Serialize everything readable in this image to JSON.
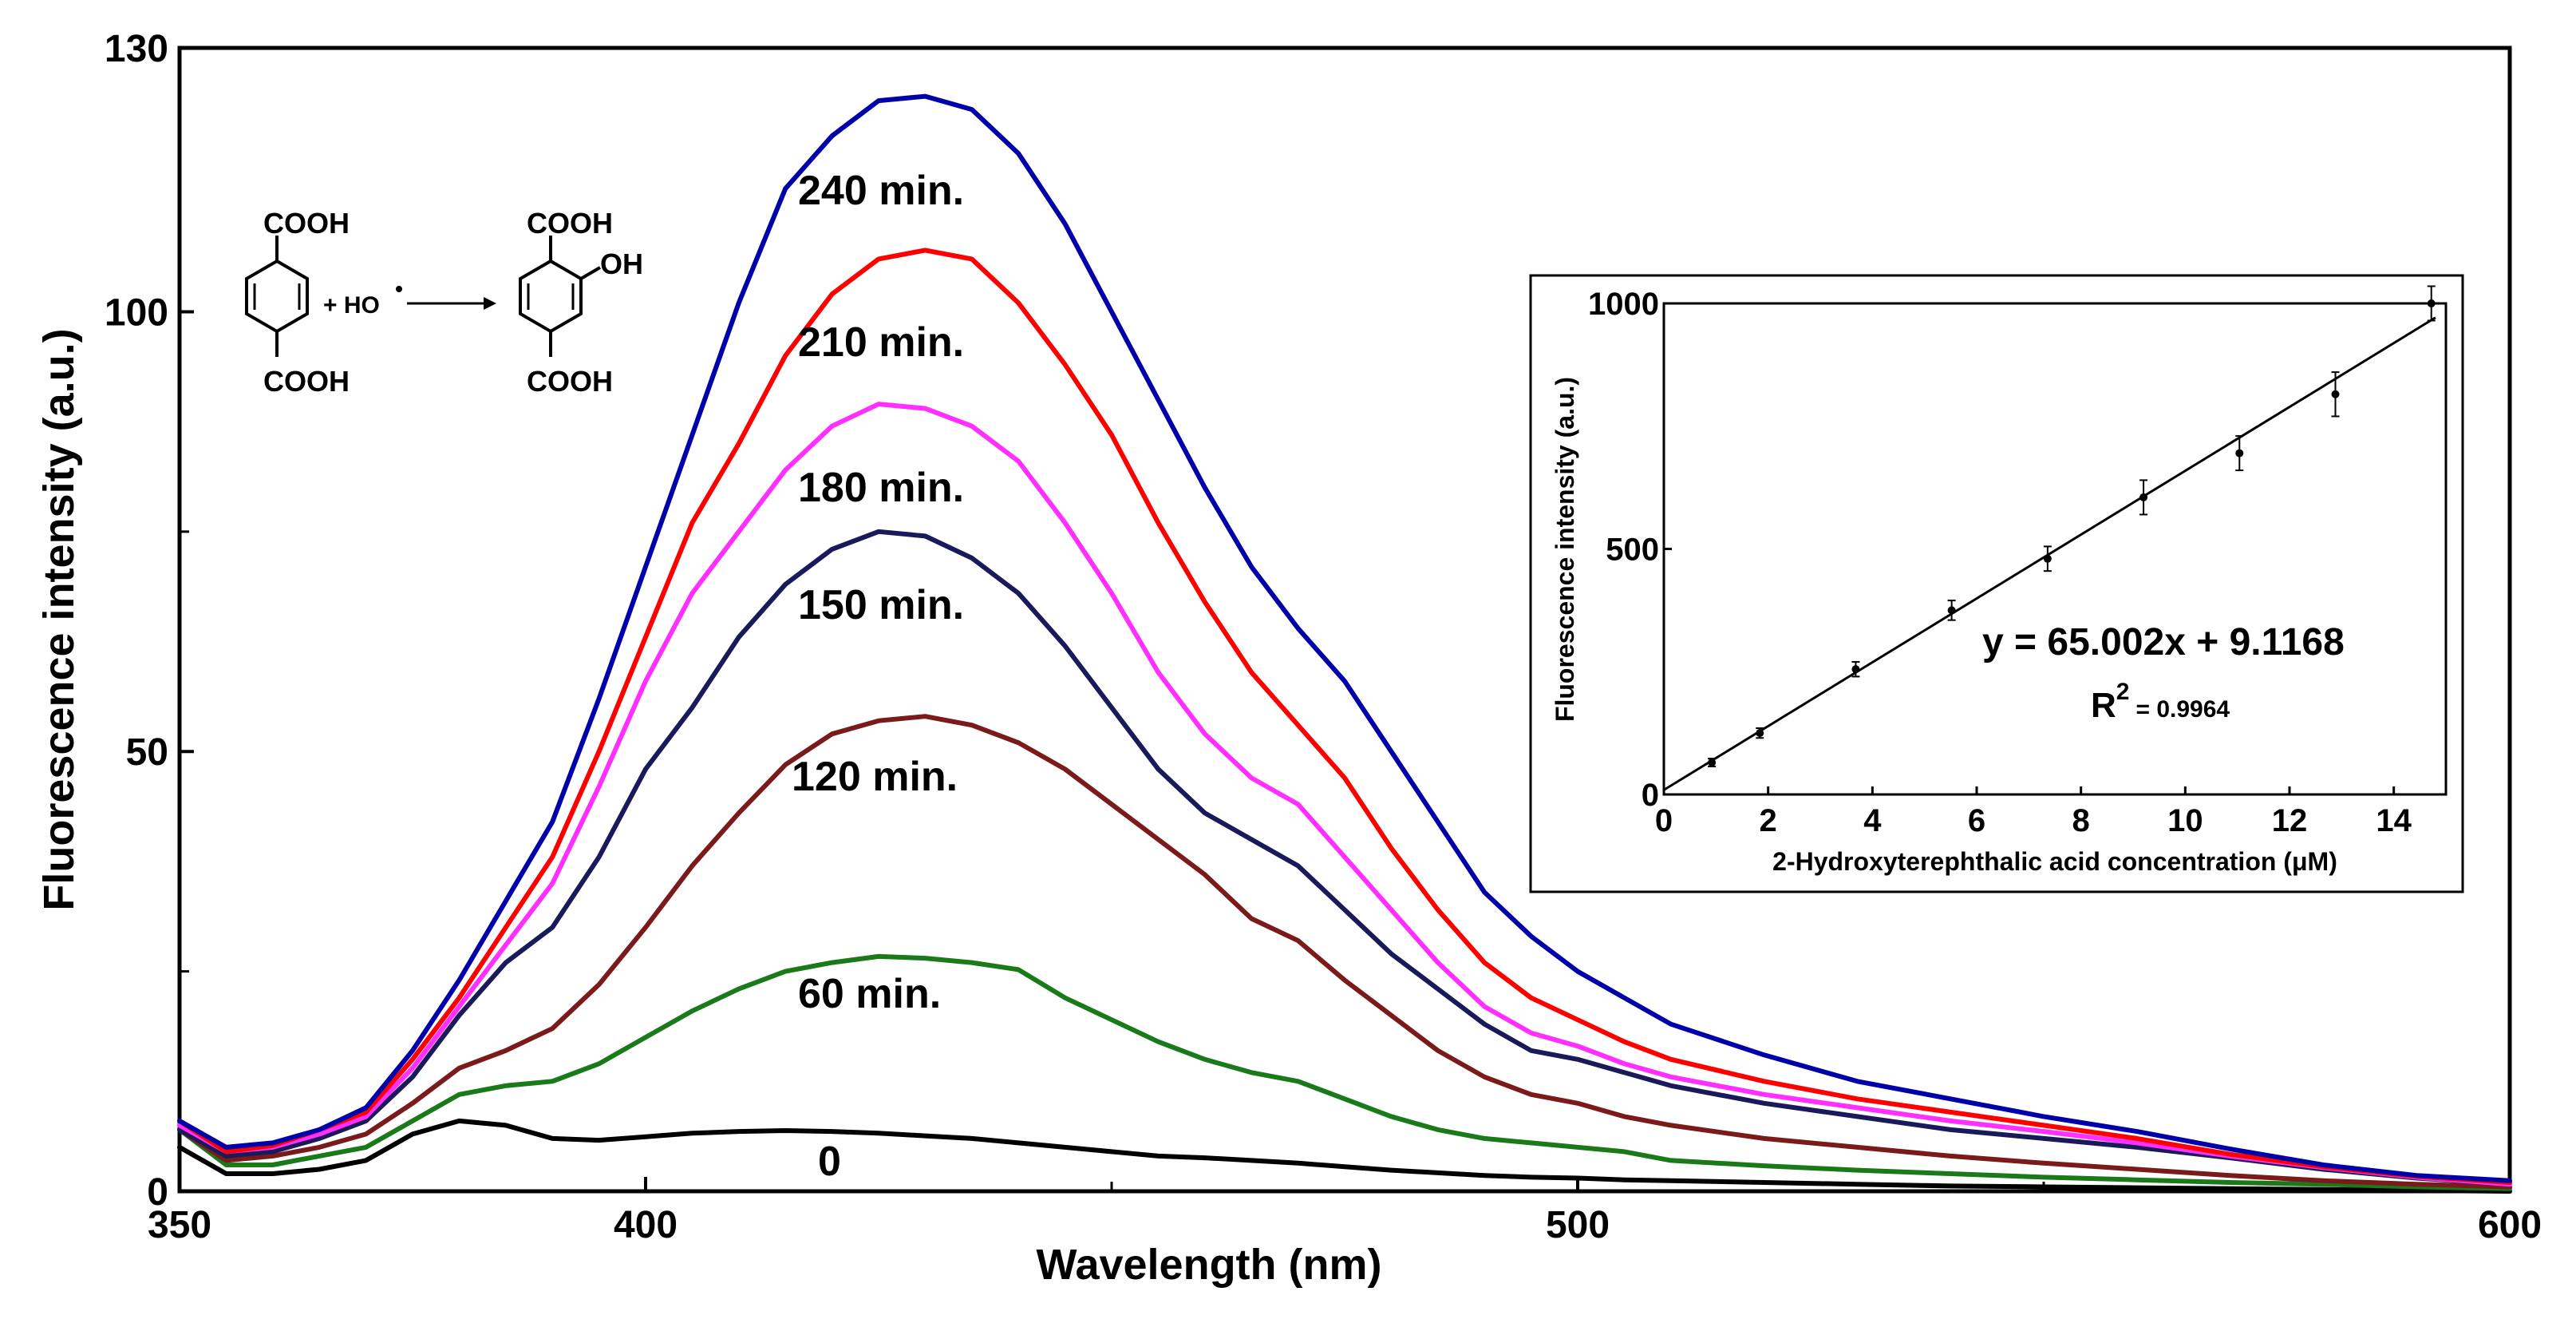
{
  "chart_data": [
    {
      "type": "line",
      "title": "",
      "xlabel": "Wavelength (nm)",
      "ylabel": "Fluorescence intensity (a.u.)",
      "xlim": [
        350,
        600
      ],
      "ylim": [
        0,
        130
      ],
      "x_ticks": [
        350,
        400,
        500,
        600
      ],
      "y_ticks": [
        0,
        50,
        100,
        130
      ],
      "x": [
        350,
        355,
        360,
        365,
        370,
        375,
        380,
        385,
        390,
        395,
        400,
        405,
        410,
        415,
        420,
        425,
        430,
        435,
        440,
        445,
        450,
        455,
        460,
        465,
        470,
        475,
        480,
        485,
        490,
        495,
        500,
        505,
        510,
        520,
        530,
        540,
        550,
        560,
        570,
        580,
        590,
        600
      ],
      "series": [
        {
          "name": "0",
          "label": "0",
          "color": "#000000",
          "values": [
            5,
            2,
            2,
            2.5,
            3.5,
            6.5,
            8,
            7.5,
            6,
            5.8,
            6.2,
            6.6,
            6.8,
            6.9,
            6.8,
            6.6,
            6.3,
            6,
            5.5,
            5,
            4.5,
            4,
            3.8,
            3.5,
            3.2,
            2.8,
            2.4,
            2.1,
            1.8,
            1.6,
            1.5,
            1.3,
            1.2,
            1,
            0.8,
            0.6,
            0.5,
            0.4,
            0.3,
            0.2,
            0.1,
            0
          ]
        },
        {
          "name": "60 min.",
          "label": "60 min.",
          "color": "#1a7a1a",
          "values": [
            7,
            3,
            3,
            4,
            5,
            8,
            11,
            12,
            12.5,
            14.5,
            17.5,
            20.5,
            23,
            25,
            26,
            26.7,
            26.5,
            26,
            25.2,
            22,
            19.5,
            17,
            15,
            13.5,
            12.5,
            10.5,
            8.5,
            7,
            6,
            5.5,
            5,
            4.5,
            3.5,
            2.9,
            2.4,
            2,
            1.6,
            1.3,
            1,
            0.8,
            0.5,
            0.3
          ]
        },
        {
          "name": "120 min.",
          "label": "120 min.",
          "color": "#7a1a1a",
          "values": [
            7,
            3.5,
            4,
            5,
            6.5,
            10,
            14,
            16,
            18.5,
            23.5,
            30,
            37,
            43,
            48.5,
            52,
            53.5,
            54,
            53,
            51,
            48,
            44,
            40,
            36,
            31,
            28.5,
            24,
            20,
            16,
            13,
            11,
            10,
            8.5,
            7.5,
            6,
            5,
            4,
            3.2,
            2.5,
            1.8,
            1.2,
            0.8,
            0.5
          ]
        },
        {
          "name": "150 min.",
          "label": "150 min.",
          "color": "#1a1a5a",
          "values": [
            7,
            4,
            4.5,
            6,
            8,
            13,
            20,
            26,
            30,
            38,
            48,
            55,
            63,
            69,
            73,
            75,
            74.5,
            72,
            68,
            62,
            55,
            48,
            43,
            40,
            37,
            32,
            27,
            23,
            19,
            16,
            15,
            13.5,
            12,
            10,
            8.5,
            7,
            6,
            5,
            3.8,
            2.5,
            1.5,
            0.8
          ]
        },
        {
          "name": "180 min.",
          "label": "180 min.",
          "color": "#ff30ff",
          "values": [
            7.5,
            4.5,
            5,
            6.5,
            8.5,
            14,
            21,
            28,
            35,
            46,
            58,
            68,
            75,
            82,
            87,
            89.5,
            89,
            87,
            83,
            76,
            68,
            59,
            52,
            47,
            44,
            38,
            32,
            26,
            21,
            18,
            16.5,
            14.5,
            13,
            11,
            9.5,
            8,
            6.8,
            5.5,
            4,
            2.7,
            1.6,
            0.8
          ]
        },
        {
          "name": "210 min.",
          "label": "210 min.",
          "color": "#ff0000",
          "values": [
            8,
            4.5,
            5.2,
            7,
            9,
            15,
            22,
            30,
            38,
            50,
            63,
            76,
            85,
            95,
            102,
            106,
            107,
            106,
            101,
            94,
            86,
            76,
            67,
            59,
            53,
            47,
            39,
            32,
            26,
            22,
            19.5,
            17,
            15,
            12.5,
            10.5,
            9,
            7.5,
            6,
            4.2,
            2.8,
            1.7,
            1
          ]
        },
        {
          "name": "240 min.",
          "label": "240 min.",
          "color": "#0000aa",
          "values": [
            8,
            5,
            5.5,
            7,
            9.5,
            16,
            24,
            33,
            42,
            56,
            71,
            86,
            101,
            114,
            120,
            124,
            124.5,
            123,
            118,
            110,
            100,
            90,
            80,
            71,
            64,
            58,
            50,
            42,
            34,
            29,
            25,
            22,
            19,
            15.5,
            12.5,
            10.5,
            8.5,
            6.8,
            4.8,
            3,
            1.8,
            1.2
          ]
        }
      ],
      "annotations": {
        "reaction": {
          "reactant_top": "COOH",
          "reactant_bottom": "COOH",
          "plus": "+ HO",
          "product_top": "COOH",
          "product_side": "OH",
          "product_bottom": "COOH"
        }
      }
    },
    {
      "type": "scatter",
      "title": "",
      "xlabel": "2-Hydroxyterephthalic acid concentration (μM)",
      "ylabel": "Fluorescence intensity (a.u.)",
      "xlim": [
        0,
        15
      ],
      "ylim": [
        0,
        1000
      ],
      "x_ticks": [
        0,
        2,
        4,
        6,
        8,
        10,
        12,
        14
      ],
      "y_ticks": [
        0,
        500,
        1000
      ],
      "x": [
        0.92,
        1.84,
        3.68,
        5.52,
        7.36,
        9.2,
        11.04,
        12.88,
        14.72
      ],
      "values": [
        65,
        125,
        255,
        375,
        480,
        605,
        695,
        815,
        1000
      ],
      "errors": [
        8,
        10,
        15,
        20,
        25,
        35,
        35,
        45,
        35
      ],
      "fit": {
        "slope": 65.002,
        "intercept": 9.1168
      },
      "equation": "y = 65.002x + 9.1168",
      "r2_label": "R",
      "r2_sup": "2",
      "r2_value": "= 0.9964"
    }
  ]
}
